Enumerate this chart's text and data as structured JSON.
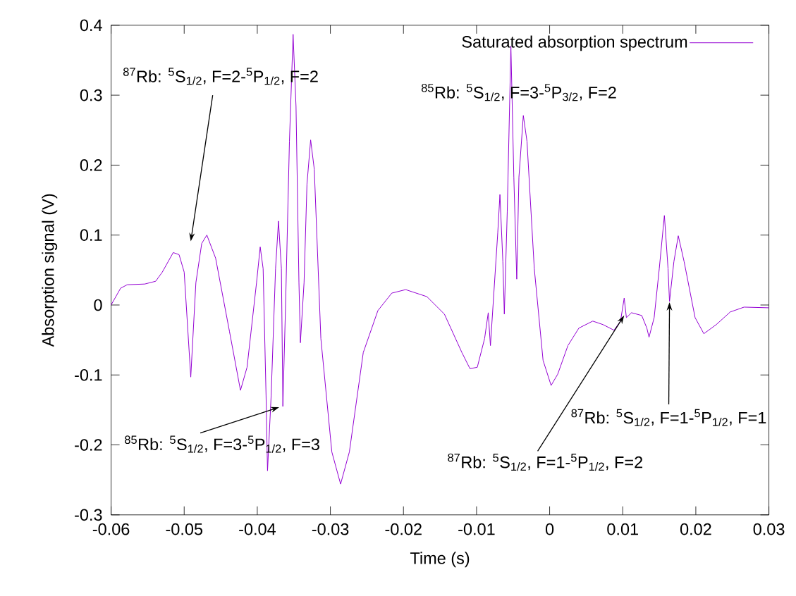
{
  "chart_data": {
    "type": "line",
    "xlabel": "Time (s)",
    "ylabel": "Absorption signal (V)",
    "series": [
      {
        "name": "Saturated absorption spectrum",
        "color": "#9400d3",
        "x": [
          -0.06,
          -0.0587,
          -0.0578,
          -0.0554,
          -0.0539,
          -0.053,
          -0.0515,
          -0.0507,
          -0.05,
          -0.0491,
          -0.0484,
          -0.0476,
          -0.0469,
          -0.0457,
          -0.0438,
          -0.0423,
          -0.0414,
          -0.0401,
          -0.0396,
          -0.0392,
          -0.0388,
          -0.0386,
          -0.0381,
          -0.0375,
          -0.0371,
          -0.0367,
          -0.0365,
          -0.0361,
          -0.0356,
          -0.0351,
          -0.0347,
          -0.0343,
          -0.0341,
          -0.0336,
          -0.0332,
          -0.0327,
          -0.0322,
          -0.0313,
          -0.0298,
          -0.0286,
          -0.0274,
          -0.0255,
          -0.0235,
          -0.0216,
          -0.0197,
          -0.0168,
          -0.0144,
          -0.012,
          -0.0109,
          -0.0099,
          -0.0089,
          -0.0084,
          -0.0081,
          -0.0071,
          -0.0068,
          -0.0064,
          -0.0062,
          -0.0058,
          -0.0053,
          -0.0049,
          -0.0045,
          -0.0042,
          -0.0036,
          -0.0031,
          -0.0021,
          -0.0009,
          0.0002,
          0.0011,
          0.0025,
          0.004,
          0.0059,
          0.0073,
          0.0088,
          0.0097,
          0.0102,
          0.0105,
          0.0112,
          0.0126,
          0.0133,
          0.0136,
          0.0143,
          0.015,
          0.0157,
          0.0162,
          0.0164,
          0.017,
          0.0176,
          0.0184,
          0.0199,
          0.0211,
          0.0228,
          0.0247,
          0.0266,
          0.03
        ],
        "values": [
          0,
          0.024,
          0.029,
          0.03,
          0.034,
          0.047,
          0.075,
          0.072,
          0.047,
          -0.103,
          0.032,
          0.088,
          0.1,
          0.067,
          -0.038,
          -0.122,
          -0.089,
          0.032,
          0.083,
          0.052,
          -0.129,
          -0.237,
          -0.129,
          0.052,
          0.12,
          0.052,
          -0.145,
          0.012,
          0.234,
          0.387,
          0.284,
          0.032,
          -0.054,
          0.032,
          0.173,
          0.236,
          0.194,
          -0.048,
          -0.21,
          -0.256,
          -0.21,
          -0.068,
          -0.008,
          0.017,
          0.022,
          0.012,
          -0.013,
          -0.068,
          -0.091,
          -0.089,
          -0.048,
          -0.011,
          -0.058,
          0.103,
          0.158,
          0.062,
          -0.013,
          0.133,
          0.37,
          0.183,
          0.037,
          0.183,
          0.271,
          0.234,
          0.052,
          -0.079,
          -0.115,
          -0.099,
          -0.058,
          -0.033,
          -0.023,
          -0.028,
          -0.036,
          -0.023,
          0.01,
          -0.018,
          -0.011,
          -0.015,
          -0.033,
          -0.046,
          -0.018,
          0.052,
          0.128,
          0.052,
          0.005,
          0.062,
          0.099,
          0.062,
          -0.018,
          -0.041,
          -0.028,
          -0.01,
          -0.003,
          -0.004
        ]
      }
    ],
    "xlim": [
      -0.06,
      0.03
    ],
    "xticks": [
      -0.06,
      -0.05,
      -0.04,
      -0.03,
      -0.02,
      -0.01,
      0,
      0.01,
      0.02,
      0.03
    ],
    "ylim": [
      -0.3,
      0.4
    ],
    "yticks": [
      -0.3,
      -0.2,
      -0.1,
      0,
      0.1,
      0.2,
      0.3,
      0.4
    ],
    "legend": "top right",
    "grid": false,
    "marker": "none",
    "line_style": "solid",
    "annotations": [
      "$^{87}$Rb: $^{5}$S$_{1/2}$, F=2-$^{5}$P$_{1/2}$, F=2",
      "$^{85}$Rb: $^{5}$S$_{1/2}$, F=3-$^{5}$P$_{3/2}$, F=2",
      "$^{85}$Rb: $^{5}$S$_{1/2}$, F=3-$^{5}$P$_{1/2}$, F=3",
      "$^{87}$Rb: $^{5}$S$_{1/2}$, F=1-$^{5}$P$_{1/2}$, F=2",
      "$^{87}$Rb: $^{5}$S$_{1/2}$, F=1-$^{5}$P$_{1/2}$, F=1"
    ]
  }
}
